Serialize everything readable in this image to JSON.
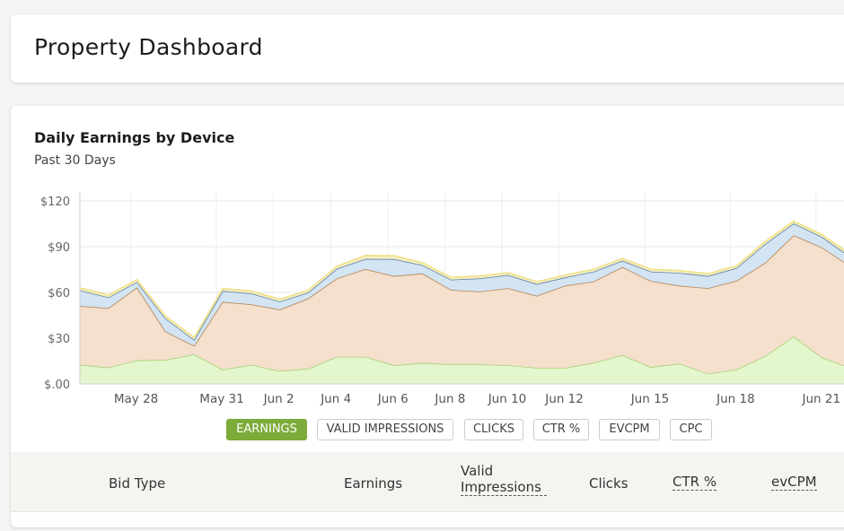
{
  "header": {
    "title": "Property Dashboard"
  },
  "chart_card": {
    "title": "Daily Earnings by Device",
    "subtitle": "Past 30 Days"
  },
  "colors": {
    "green_fill": "#e3f6cd",
    "green_line": "#a6d274",
    "orange_fill": "#f5dfcd",
    "orange_line": "#b18454",
    "blue_fill": "#d3e4f3",
    "blue_line": "#5d7ea6",
    "yellow_fill": "#f4f0c4",
    "yellow_line": "#f0e08a",
    "active_tab": "#7cab3a"
  },
  "metric_tabs": [
    {
      "label": "EARNINGS",
      "active": true
    },
    {
      "label": "VALID IMPRESSIONS",
      "active": false
    },
    {
      "label": "CLICKS",
      "active": false
    },
    {
      "label": "CTR %",
      "active": false
    },
    {
      "label": "EVCPM",
      "active": false
    },
    {
      "label": "CPC",
      "active": false
    }
  ],
  "table": {
    "columns": [
      {
        "label": "Bid Type"
      },
      {
        "label": "Earnings"
      },
      {
        "label": "Valid Impressions"
      },
      {
        "label": "Clicks"
      },
      {
        "label": "CTR %"
      },
      {
        "label": "evCPM"
      }
    ]
  },
  "chart_data": {
    "type": "area",
    "stacked": true,
    "y_ticks": [
      "$120",
      "$90",
      "$60",
      "$30",
      "$.00"
    ],
    "x_tick_labels": [
      "May 28",
      "May 31",
      "Jun 2",
      "Jun 4",
      "Jun 6",
      "Jun 8",
      "Jun 10",
      "Jun 12",
      "Jun 15",
      "Jun 18",
      "Jun 21"
    ],
    "x": [
      "May 26",
      "May 27",
      "May 28",
      "May 29",
      "May 30",
      "May 31",
      "Jun 1",
      "Jun 2",
      "Jun 3",
      "Jun 4",
      "Jun 5",
      "Jun 6",
      "Jun 7",
      "Jun 8",
      "Jun 9",
      "Jun 10",
      "Jun 11",
      "Jun 12",
      "Jun 13",
      "Jun 14",
      "Jun 15",
      "Jun 16",
      "Jun 17",
      "Jun 18",
      "Jun 19",
      "Jun 20",
      "Jun 21",
      "Jun 22"
    ],
    "ylim": [
      0,
      120
    ],
    "grid": true,
    "series": [
      {
        "values": [
          12.5,
          10.8,
          15.5,
          15.8,
          19.4,
          9.4,
          12.5,
          8.5,
          10,
          17.8,
          17.8,
          12.2,
          13.8,
          12.8,
          12.8,
          12.2,
          10.6,
          10.6,
          13.9,
          18.9,
          11.1,
          13.3,
          6.7,
          9.4,
          18.3,
          31.1,
          17.2,
          10.6
        ]
      },
      {
        "values": [
          38.6,
          38.9,
          47.8,
          18.6,
          5.6,
          44.4,
          39.7,
          40.3,
          46.1,
          51.4,
          57.5,
          58.6,
          58.6,
          48.9,
          47.8,
          50.6,
          47.2,
          53.9,
          53.3,
          57.8,
          56.4,
          51.1,
          56.1,
          58.3,
          61.1,
          66.4,
          72.2,
          66.4
        ]
      },
      {
        "values": [
          10.3,
          7.1,
          3.5,
          8.5,
          3.9,
          7.2,
          7.2,
          5.2,
          3.9,
          6.4,
          6.7,
          11.1,
          5.5,
          6.7,
          8.6,
          8.6,
          7.7,
          5.4,
          6.5,
          4.1,
          6.2,
          8.4,
          8,
          8.3,
          12.4,
          7.8,
          6.9,
          6.1
        ]
      },
      {
        "values": [
          1.5,
          1.5,
          1.5,
          1.5,
          1.5,
          1.5,
          1.5,
          1.5,
          1.5,
          1.5,
          2.2,
          2.2,
          1.5,
          1.5,
          1.5,
          1.5,
          1.5,
          1.5,
          1.5,
          1.5,
          1.5,
          1.5,
          1.5,
          1.5,
          1.5,
          1.5,
          1.5,
          1.5
        ]
      }
    ]
  }
}
